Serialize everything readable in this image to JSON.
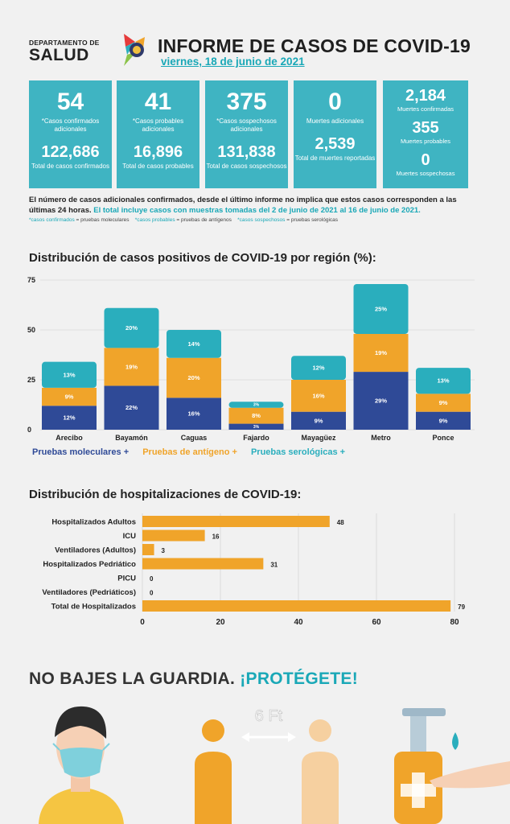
{
  "header": {
    "dept_line1": "DEPARTAMENTO DE",
    "dept_line2": "SALUD",
    "title": "INFORME DE CASOS DE COVID-19",
    "date": "viernes, 18 de junio de 2021"
  },
  "stats": [
    {
      "big": "54",
      "big_label": "*Casos confirmados adicionales",
      "total": "122,686",
      "total_label": "Total de casos confirmados"
    },
    {
      "big": "41",
      "big_label": "*Casos probables adicionales",
      "total": "16,896",
      "total_label": "Total de casos probables"
    },
    {
      "big": "375",
      "big_label": "*Casos sospechosos adicionales",
      "total": "131,838",
      "total_label": "Total de casos sospechosos"
    },
    {
      "big": "0",
      "big_label": "Muertes adicionales",
      "total": "2,539",
      "total_label": "Total de muertes reportadas"
    }
  ],
  "deaths": [
    {
      "value": "2,184",
      "label": "Muertes confirmadas"
    },
    {
      "value": "355",
      "label": "Muertes probables"
    },
    {
      "value": "0",
      "label": "Muertes sospechosas"
    }
  ],
  "note": {
    "text": "El número de casos adicionales confirmados, desde el último informe no implica que estos casos corresponden a las últimas 24 horas.",
    "highlight": "El total incluye casos con muestras tomadas del 2 de junio de 2021 al 16 de junio de 2021."
  },
  "small_legend": {
    "c1": "*casos confirmados",
    "t1": "= pruebas moleculares",
    "c2": "*casos probables",
    "t2": "= pruebas de antígenos",
    "c3": "*casos sospechosos",
    "t3": "= pruebas serológicas"
  },
  "colors": {
    "molecular": "#2f4a97",
    "antigen": "#f0a42a",
    "serologic": "#2aaebd",
    "hosp": "#f0a42a",
    "teal": "#3fb4c2"
  },
  "chart_data": [
    {
      "type": "bar",
      "stacked": true,
      "title": "Distribución de casos positivos de COVID-19 por región (%):",
      "categories": [
        "Arecibo",
        "Bayamón",
        "Caguas",
        "Fajardo",
        "Mayagüez",
        "Metro",
        "Ponce"
      ],
      "series": [
        {
          "name": "Pruebas moleculares +",
          "values": [
            12,
            22,
            16,
            3,
            9,
            29,
            9
          ],
          "labels": [
            "12%",
            "22%",
            "16%",
            "3%",
            "9%",
            "29%",
            "9%"
          ]
        },
        {
          "name": "Pruebas de antígeno +",
          "values": [
            9,
            19,
            20,
            8,
            16,
            19,
            9
          ],
          "labels": [
            "9%",
            "19%",
            "20%",
            "8%",
            "16%",
            "19%",
            "9%"
          ]
        },
        {
          "name": "Pruebas serológicas +",
          "values": [
            13,
            20,
            14,
            3,
            12,
            25,
            13
          ],
          "labels": [
            "13%",
            "20%",
            "14%",
            "3%",
            "12%",
            "25%",
            "13%"
          ]
        }
      ],
      "yticks": [
        "0",
        "25",
        "50",
        "75"
      ],
      "ylim": [
        0,
        75
      ],
      "legend_position": "bottom"
    },
    {
      "type": "bar",
      "orientation": "horizontal",
      "title": "Distribución de hospitalizaciones de COVID-19:",
      "categories": [
        "Hospitalizados Adultos",
        "ICU",
        "Ventiladores (Adultos)",
        "Hospitalizados Pedriático",
        "PICU",
        "Ventiladores (Pedriáticos)",
        "Total de Hospitalizados"
      ],
      "values": [
        48,
        16,
        3,
        31,
        0,
        0,
        79
      ],
      "labels": [
        "48",
        "16",
        "3",
        "31",
        "0",
        "0",
        "79"
      ],
      "xticks": [
        "0",
        "20",
        "40",
        "60",
        "80"
      ],
      "xlim": [
        0,
        80
      ]
    }
  ],
  "slogan": {
    "part1": "NO BAJES LA GUARDIA.",
    "part2": "¡PROTÉGETE!"
  },
  "illustration": {
    "distance": "6 Ft"
  }
}
